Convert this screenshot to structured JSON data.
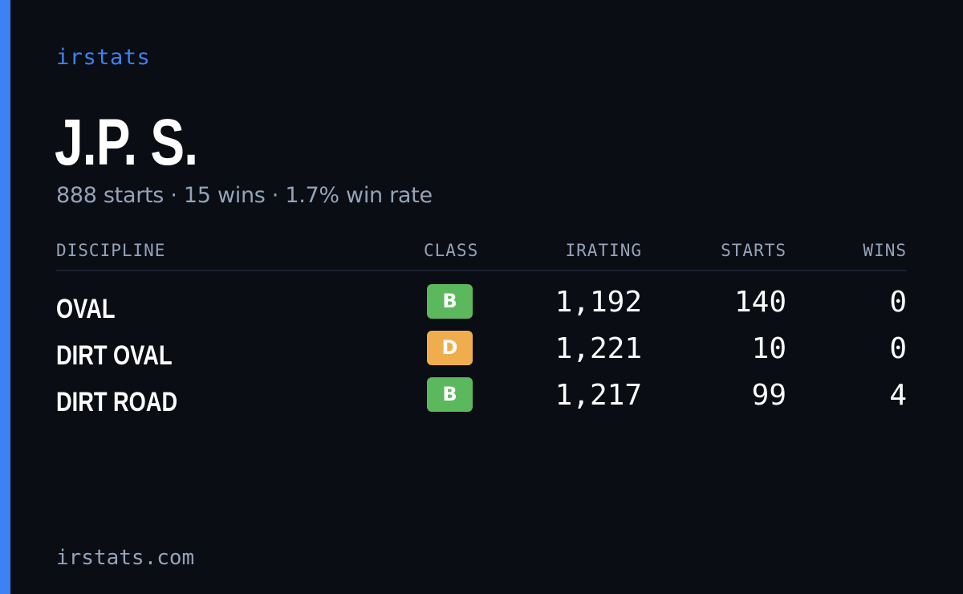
{
  "brand": "irstats",
  "driver": {
    "name": "J.P. S.",
    "summary": "888 starts · 15 wins · 1.7% win rate"
  },
  "table": {
    "headers": {
      "discipline": "DISCIPLINE",
      "class": "CLASS",
      "irating": "IRATING",
      "starts": "STARTS",
      "wins": "WINS"
    },
    "rows": [
      {
        "discipline": "OVAL",
        "class": "B",
        "class_color": "#5cb85c",
        "irating": "1,192",
        "starts": "140",
        "wins": "0"
      },
      {
        "discipline": "DIRT OVAL",
        "class": "D",
        "class_color": "#f0ad4e",
        "irating": "1,221",
        "starts": "10",
        "wins": "0"
      },
      {
        "discipline": "DIRT ROAD",
        "class": "B",
        "class_color": "#5cb85c",
        "irating": "1,217",
        "starts": "99",
        "wins": "4"
      }
    ]
  },
  "footer": "irstats.com",
  "colors": {
    "accent": "#3b82f6",
    "background": "#0a0d14",
    "muted_text": "#94a3b8"
  }
}
